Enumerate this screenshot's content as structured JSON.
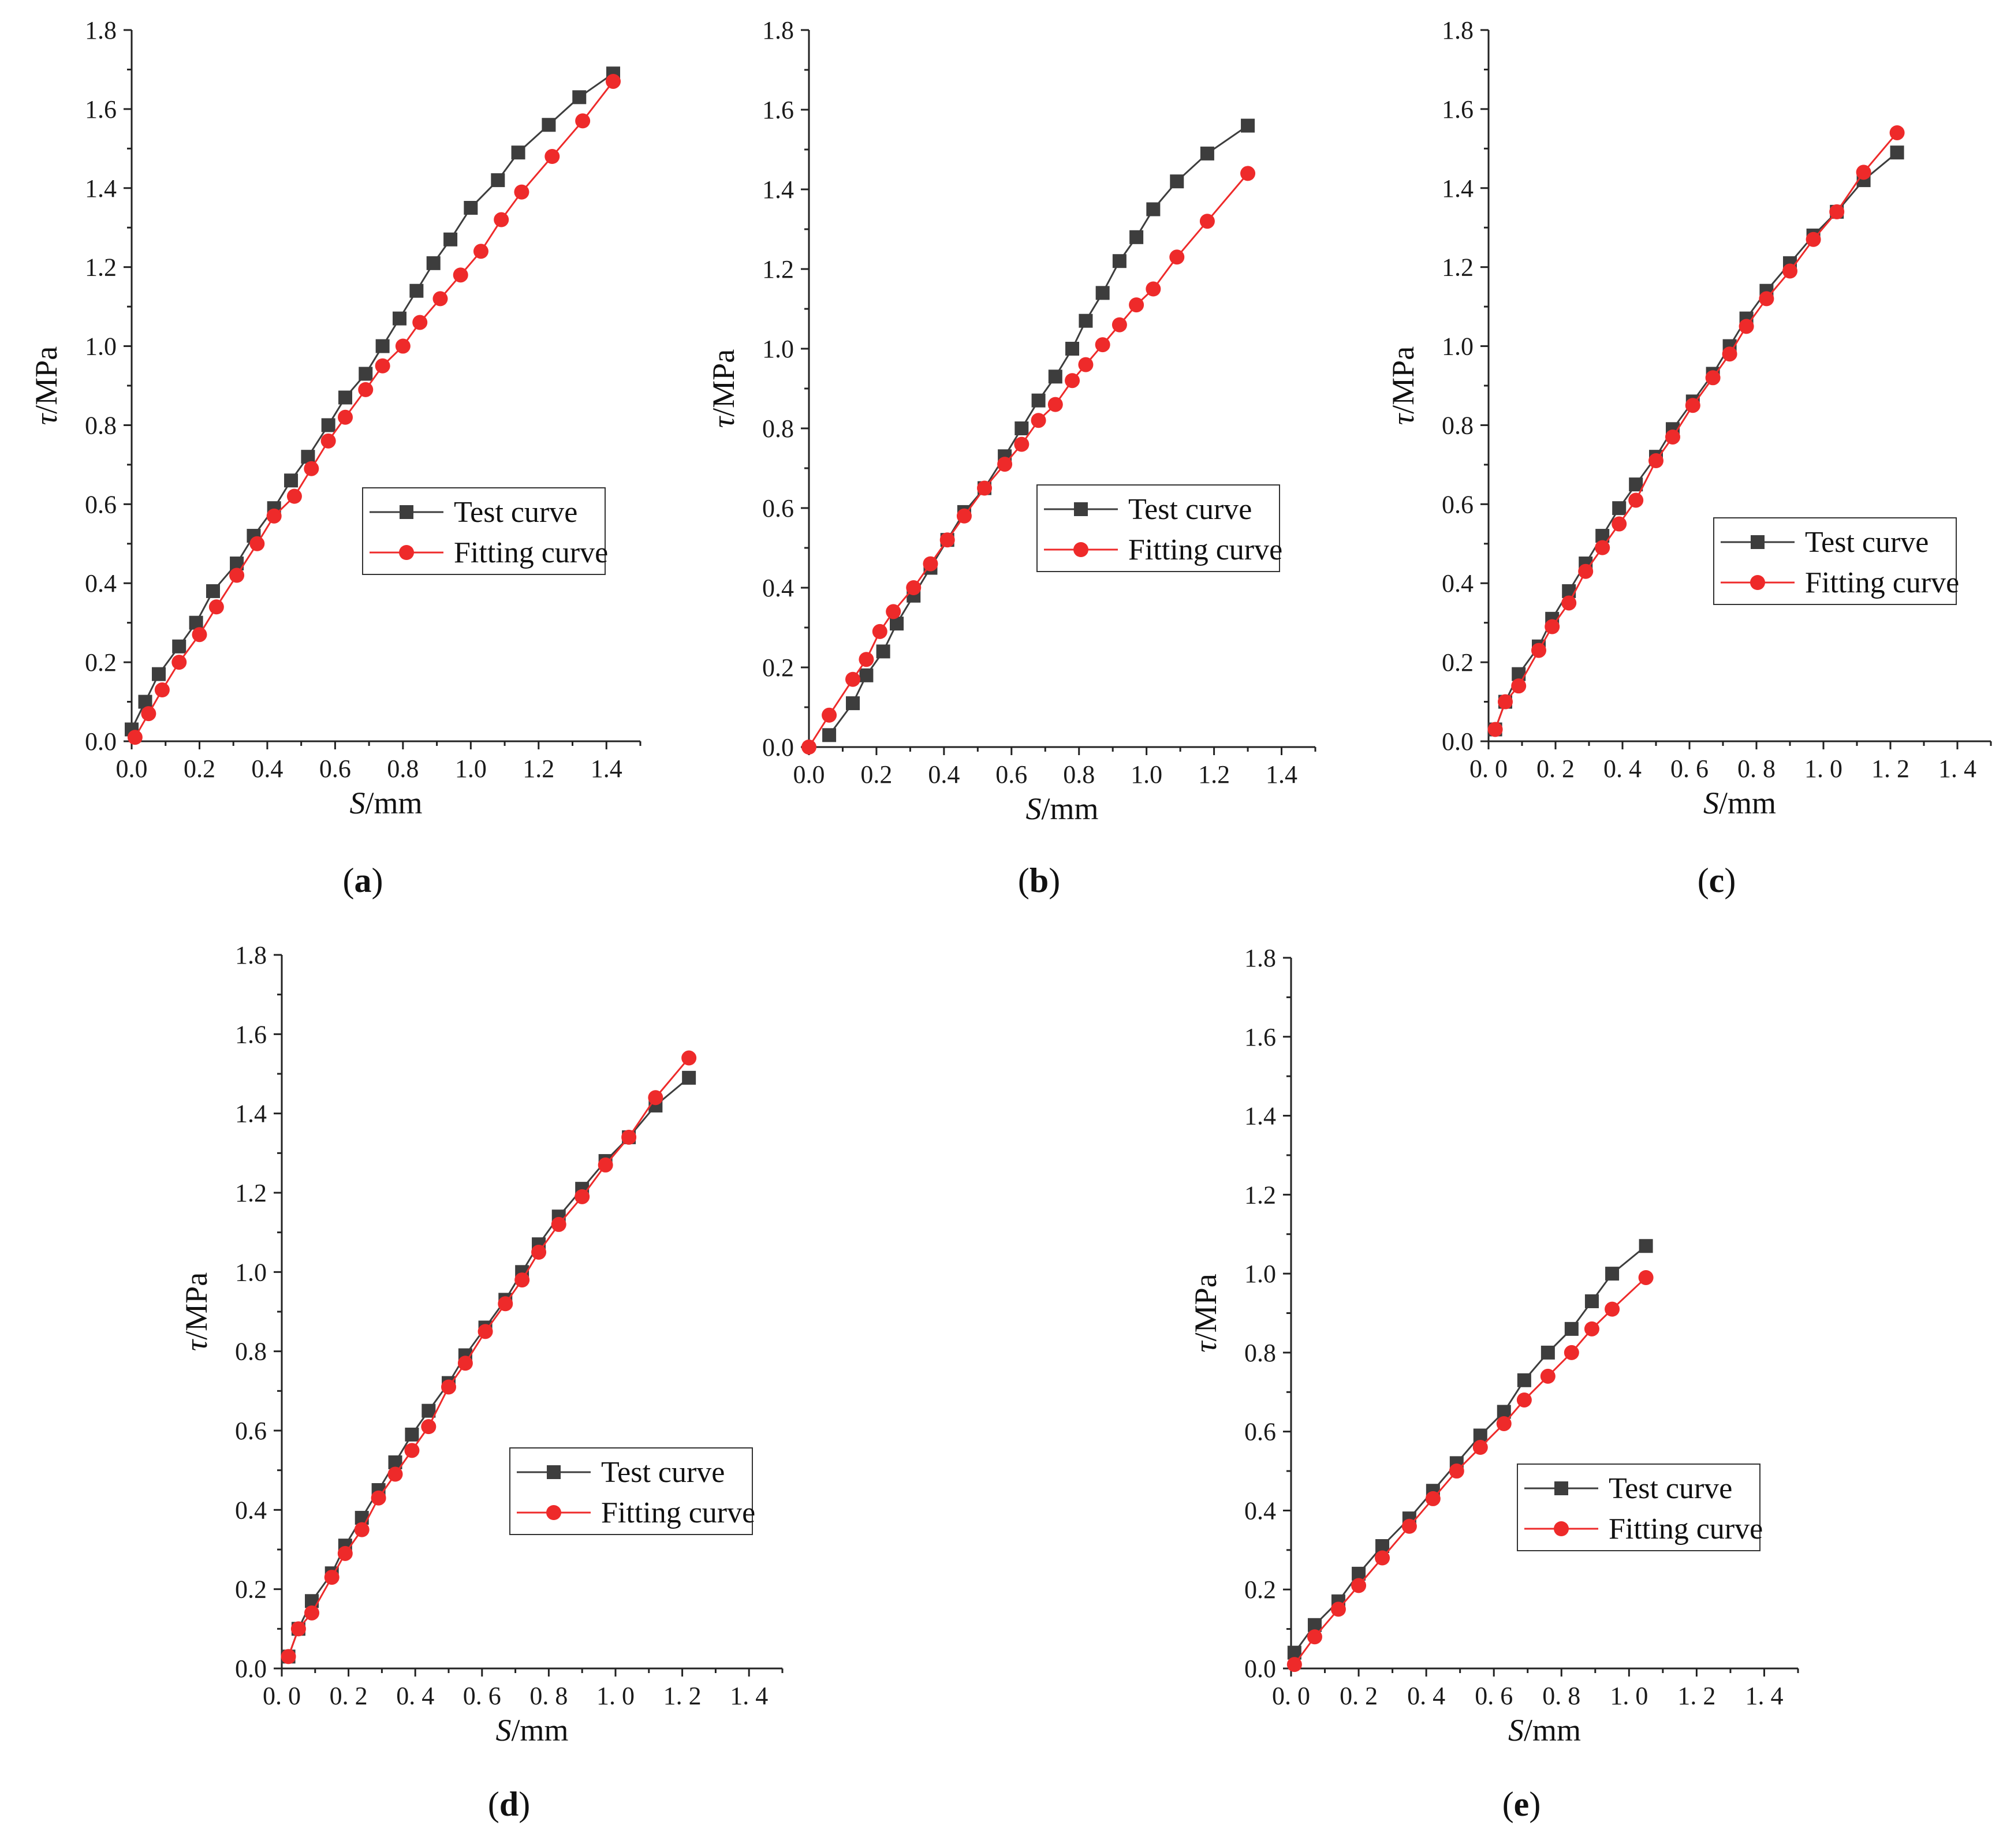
{
  "figure": {
    "panels": [
      "a",
      "b",
      "c",
      "d",
      "e"
    ]
  },
  "chart_data": [
    {
      "id": "a",
      "panel_label": "(a)",
      "type": "line",
      "xlabel_italic": "S",
      "xlabel_rest": "/mm",
      "ylabel_italic": "τ",
      "ylabel_rest": "/MPa",
      "xlim": [
        0,
        1.5
      ],
      "ylim": [
        0,
        1.8
      ],
      "xticks": [
        0.0,
        0.2,
        0.4,
        0.6,
        0.8,
        1.0,
        1.2,
        1.4
      ],
      "xtick_labels": [
        "0.0",
        "0.2",
        "0.4",
        "0.6",
        "0.8",
        "1.0",
        "1.2",
        "1.4"
      ],
      "yticks": [
        0.0,
        0.2,
        0.4,
        0.6,
        0.8,
        1.0,
        1.2,
        1.4,
        1.6,
        1.8
      ],
      "ytick_labels": [
        "0.0",
        "0.2",
        "0.4",
        "0.6",
        "0.8",
        "1.0",
        "1.2",
        "1.4",
        "1.6",
        "1.8"
      ],
      "legend": {
        "placement": "lower-right",
        "entries": [
          "Test curve",
          "Fitting curve"
        ]
      },
      "series": [
        {
          "name": "Test curve",
          "color": "#3d3d3d",
          "marker": "square",
          "x": [
            0.0,
            0.04,
            0.08,
            0.14,
            0.19,
            0.24,
            0.31,
            0.36,
            0.42,
            0.47,
            0.52,
            0.58,
            0.63,
            0.69,
            0.74,
            0.79,
            0.84,
            0.89,
            0.94,
            1.0,
            1.08,
            1.14,
            1.23,
            1.32,
            1.42
          ],
          "y": [
            0.03,
            0.1,
            0.17,
            0.24,
            0.3,
            0.38,
            0.45,
            0.52,
            0.59,
            0.66,
            0.72,
            0.8,
            0.87,
            0.93,
            1.0,
            1.07,
            1.14,
            1.21,
            1.27,
            1.35,
            1.42,
            1.49,
            1.56,
            1.63,
            1.69
          ]
        },
        {
          "name": "Fitting curve",
          "color": "#ee2a2a",
          "marker": "circle",
          "x": [
            0.01,
            0.05,
            0.09,
            0.14,
            0.2,
            0.25,
            0.31,
            0.37,
            0.42,
            0.48,
            0.53,
            0.58,
            0.63,
            0.69,
            0.74,
            0.8,
            0.85,
            0.91,
            0.97,
            1.03,
            1.09,
            1.15,
            1.24,
            1.33,
            1.42
          ],
          "y": [
            0.01,
            0.07,
            0.13,
            0.2,
            0.27,
            0.34,
            0.42,
            0.5,
            0.57,
            0.62,
            0.69,
            0.76,
            0.82,
            0.89,
            0.95,
            1.0,
            1.06,
            1.12,
            1.18,
            1.24,
            1.32,
            1.39,
            1.48,
            1.57,
            1.67
          ]
        }
      ]
    },
    {
      "id": "b",
      "panel_label": "(b)",
      "type": "line",
      "xlabel_italic": "S",
      "xlabel_rest": "/mm",
      "ylabel_italic": "τ",
      "ylabel_rest": "/MPa",
      "xlim": [
        0,
        1.5
      ],
      "ylim": [
        0,
        1.8
      ],
      "xticks": [
        0.0,
        0.2,
        0.4,
        0.6,
        0.8,
        1.0,
        1.2,
        1.4
      ],
      "xtick_labels": [
        "0.0",
        "0.2",
        "0.4",
        "0.6",
        "0.8",
        "1.0",
        "1.2",
        "1.4"
      ],
      "yticks": [
        0.0,
        0.2,
        0.4,
        0.6,
        0.8,
        1.0,
        1.2,
        1.4,
        1.6,
        1.8
      ],
      "ytick_labels": [
        "0.0",
        "0.2",
        "0.4",
        "0.6",
        "0.8",
        "1.0",
        "1.2",
        "1.4",
        "1.6",
        "1.8"
      ],
      "legend": {
        "placement": "lower-right",
        "entries": [
          "Test curve",
          "Fitting curve"
        ]
      },
      "series": [
        {
          "name": "Test curve",
          "color": "#3d3d3d",
          "marker": "square",
          "x": [
            0.06,
            0.13,
            0.17,
            0.22,
            0.26,
            0.31,
            0.36,
            0.41,
            0.46,
            0.52,
            0.58,
            0.63,
            0.68,
            0.73,
            0.78,
            0.82,
            0.87,
            0.92,
            0.97,
            1.02,
            1.09,
            1.18,
            1.3
          ],
          "y": [
            0.03,
            0.11,
            0.18,
            0.24,
            0.31,
            0.38,
            0.45,
            0.52,
            0.59,
            0.65,
            0.73,
            0.8,
            0.87,
            0.93,
            1.0,
            1.07,
            1.14,
            1.22,
            1.28,
            1.35,
            1.42,
            1.49,
            1.56
          ]
        },
        {
          "name": "Fitting curve",
          "color": "#ee2a2a",
          "marker": "circle",
          "x": [
            0.0,
            0.06,
            0.13,
            0.17,
            0.21,
            0.25,
            0.31,
            0.36,
            0.41,
            0.46,
            0.52,
            0.58,
            0.63,
            0.68,
            0.73,
            0.78,
            0.82,
            0.87,
            0.92,
            0.97,
            1.02,
            1.09,
            1.18,
            1.3
          ],
          "y": [
            0.0,
            0.08,
            0.17,
            0.22,
            0.29,
            0.34,
            0.4,
            0.46,
            0.52,
            0.58,
            0.65,
            0.71,
            0.76,
            0.82,
            0.86,
            0.92,
            0.96,
            1.01,
            1.06,
            1.11,
            1.15,
            1.23,
            1.32,
            1.44
          ]
        }
      ]
    },
    {
      "id": "c",
      "panel_label": "(c)",
      "type": "line",
      "xlabel_italic": "S",
      "xlabel_rest": "/mm",
      "ylabel_italic": "τ",
      "ylabel_rest": "/MPa",
      "xlim": [
        0,
        1.5
      ],
      "ylim": [
        0,
        1.8
      ],
      "xticks": [
        0.0,
        0.2,
        0.4,
        0.6,
        0.8,
        1.0,
        1.2,
        1.4
      ],
      "xtick_labels": [
        "0. 0",
        "0. 2",
        "0. 4",
        "0. 6",
        "0. 8",
        "1. 0",
        "1. 2",
        "1. 4"
      ],
      "yticks": [
        0.0,
        0.2,
        0.4,
        0.6,
        0.8,
        1.0,
        1.2,
        1.4,
        1.6,
        1.8
      ],
      "ytick_labels": [
        "0.0",
        "0.2",
        "0.4",
        "0.6",
        "0.8",
        "1.0",
        "1.2",
        "1.4",
        "1.6",
        "1.8"
      ],
      "legend": {
        "placement": "lower-right",
        "entries": [
          "Test curve",
          "Fitting curve"
        ]
      },
      "series": [
        {
          "name": "Test curve",
          "color": "#3d3d3d",
          "marker": "square",
          "x": [
            0.02,
            0.05,
            0.09,
            0.15,
            0.19,
            0.24,
            0.29,
            0.34,
            0.39,
            0.44,
            0.5,
            0.55,
            0.61,
            0.67,
            0.72,
            0.77,
            0.83,
            0.9,
            0.97,
            1.04,
            1.12,
            1.22
          ],
          "y": [
            0.03,
            0.1,
            0.17,
            0.24,
            0.31,
            0.38,
            0.45,
            0.52,
            0.59,
            0.65,
            0.72,
            0.79,
            0.86,
            0.93,
            1.0,
            1.07,
            1.14,
            1.21,
            1.28,
            1.34,
            1.42,
            1.49
          ]
        },
        {
          "name": "Fitting curve",
          "color": "#ee2a2a",
          "marker": "circle",
          "x": [
            0.02,
            0.05,
            0.09,
            0.15,
            0.19,
            0.24,
            0.29,
            0.34,
            0.39,
            0.44,
            0.5,
            0.55,
            0.61,
            0.67,
            0.72,
            0.77,
            0.83,
            0.9,
            0.97,
            1.04,
            1.12,
            1.22
          ],
          "y": [
            0.03,
            0.1,
            0.14,
            0.23,
            0.29,
            0.35,
            0.43,
            0.49,
            0.55,
            0.61,
            0.71,
            0.77,
            0.85,
            0.92,
            0.98,
            1.05,
            1.12,
            1.19,
            1.27,
            1.34,
            1.44,
            1.54
          ]
        }
      ]
    },
    {
      "id": "d",
      "panel_label": "(d)",
      "type": "line",
      "xlabel_italic": "S",
      "xlabel_rest": "/mm",
      "ylabel_italic": "τ",
      "ylabel_rest": "/MPa",
      "xlim": [
        0,
        1.5
      ],
      "ylim": [
        0,
        1.8
      ],
      "xticks": [
        0.0,
        0.2,
        0.4,
        0.6,
        0.8,
        1.0,
        1.2,
        1.4
      ],
      "xtick_labels": [
        "0. 0",
        "0. 2",
        "0. 4",
        "0. 6",
        "0. 8",
        "1. 0",
        "1. 2",
        "1. 4"
      ],
      "yticks": [
        0.0,
        0.2,
        0.4,
        0.6,
        0.8,
        1.0,
        1.2,
        1.4,
        1.6,
        1.8
      ],
      "ytick_labels": [
        "0.0",
        "0.2",
        "0.4",
        "0.6",
        "0.8",
        "1.0",
        "1.2",
        "1.4",
        "1.6",
        "1.8"
      ],
      "legend": {
        "placement": "lower-right",
        "entries": [
          "Test curve",
          "Fitting curve"
        ]
      },
      "series": [
        {
          "name": "Test curve",
          "color": "#3d3d3d",
          "marker": "square",
          "x": [
            0.02,
            0.05,
            0.09,
            0.15,
            0.19,
            0.24,
            0.29,
            0.34,
            0.39,
            0.44,
            0.5,
            0.55,
            0.61,
            0.67,
            0.72,
            0.77,
            0.83,
            0.9,
            0.97,
            1.04,
            1.12,
            1.22
          ],
          "y": [
            0.03,
            0.1,
            0.17,
            0.24,
            0.31,
            0.38,
            0.45,
            0.52,
            0.59,
            0.65,
            0.72,
            0.79,
            0.86,
            0.93,
            1.0,
            1.07,
            1.14,
            1.21,
            1.28,
            1.34,
            1.42,
            1.49
          ]
        },
        {
          "name": "Fitting curve",
          "color": "#ee2a2a",
          "marker": "circle",
          "x": [
            0.02,
            0.05,
            0.09,
            0.15,
            0.19,
            0.24,
            0.29,
            0.34,
            0.39,
            0.44,
            0.5,
            0.55,
            0.61,
            0.67,
            0.72,
            0.77,
            0.83,
            0.9,
            0.97,
            1.04,
            1.12,
            1.22
          ],
          "y": [
            0.03,
            0.1,
            0.14,
            0.23,
            0.29,
            0.35,
            0.43,
            0.49,
            0.55,
            0.61,
            0.71,
            0.77,
            0.85,
            0.92,
            0.98,
            1.05,
            1.12,
            1.19,
            1.27,
            1.34,
            1.44,
            1.54
          ]
        }
      ]
    },
    {
      "id": "e",
      "panel_label": "(e)",
      "type": "line",
      "xlabel_italic": "S",
      "xlabel_rest": "/mm",
      "ylabel_italic": "τ",
      "ylabel_rest": "/MPa",
      "xlim": [
        0,
        1.5
      ],
      "ylim": [
        0,
        1.8
      ],
      "xticks": [
        0.0,
        0.2,
        0.4,
        0.6,
        0.8,
        1.0,
        1.2,
        1.4
      ],
      "xtick_labels": [
        "0. 0",
        "0. 2",
        "0. 4",
        "0. 6",
        "0. 8",
        "1. 0",
        "1. 2",
        "1. 4"
      ],
      "yticks": [
        0.0,
        0.2,
        0.4,
        0.6,
        0.8,
        1.0,
        1.2,
        1.4,
        1.6,
        1.8
      ],
      "ytick_labels": [
        "0.0",
        "0.2",
        "0.4",
        "0.6",
        "0.8",
        "1.0",
        "1.2",
        "1.4",
        "1.6",
        "1.8"
      ],
      "legend": {
        "placement": "lower-right",
        "entries": [
          "Test curve",
          "Fitting curve"
        ]
      },
      "series": [
        {
          "name": "Test curve",
          "color": "#3d3d3d",
          "marker": "square",
          "x": [
            0.01,
            0.07,
            0.14,
            0.2,
            0.27,
            0.35,
            0.42,
            0.49,
            0.56,
            0.63,
            0.69,
            0.76,
            0.83,
            0.89,
            0.95,
            1.05
          ],
          "y": [
            0.04,
            0.11,
            0.17,
            0.24,
            0.31,
            0.38,
            0.45,
            0.52,
            0.59,
            0.65,
            0.73,
            0.8,
            0.86,
            0.93,
            1.0,
            1.07
          ]
        },
        {
          "name": "Fitting curve",
          "color": "#ee2a2a",
          "marker": "circle",
          "x": [
            0.01,
            0.07,
            0.14,
            0.2,
            0.27,
            0.35,
            0.42,
            0.49,
            0.56,
            0.63,
            0.69,
            0.76,
            0.83,
            0.89,
            0.95,
            1.05
          ],
          "y": [
            0.01,
            0.08,
            0.15,
            0.21,
            0.28,
            0.36,
            0.43,
            0.5,
            0.56,
            0.62,
            0.68,
            0.74,
            0.8,
            0.86,
            0.91,
            0.99
          ]
        }
      ]
    }
  ]
}
